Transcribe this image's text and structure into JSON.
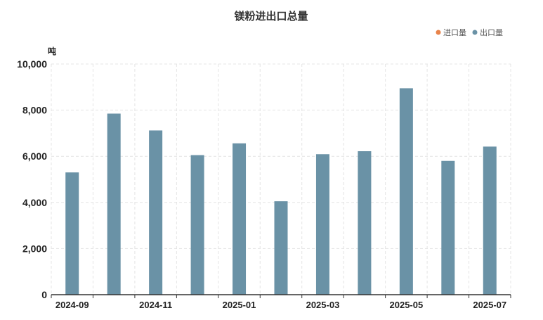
{
  "chart_data": {
    "type": "bar",
    "title": "镁粉进出口总量",
    "unit_label": "吨",
    "categories": [
      "2024-09",
      "2024-10",
      "2024-11",
      "2024-12",
      "2025-01",
      "2025-02",
      "2025-03",
      "2025-04",
      "2025-05",
      "2025-06",
      "2025-07"
    ],
    "x_tick_labels": [
      "2024-09",
      "2024-11",
      "2025-01",
      "2025-03",
      "2025-05",
      "2025-07"
    ],
    "y_tick_labels": [
      "0",
      "2,000",
      "4,000",
      "6,000",
      "8,000",
      "10,000"
    ],
    "ylim": [
      0,
      10000
    ],
    "grid": true,
    "legend_position": "top-right",
    "series": [
      {
        "name": "进口量",
        "color": "#e8834a",
        "values": [
          0,
          0,
          0,
          0,
          0,
          0,
          0,
          0,
          0,
          0,
          0
        ]
      },
      {
        "name": "出口量",
        "color": "#6a92a6",
        "values": [
          5300,
          7850,
          7120,
          6050,
          6560,
          4050,
          6090,
          6220,
          8950,
          5800,
          6420
        ]
      }
    ]
  }
}
